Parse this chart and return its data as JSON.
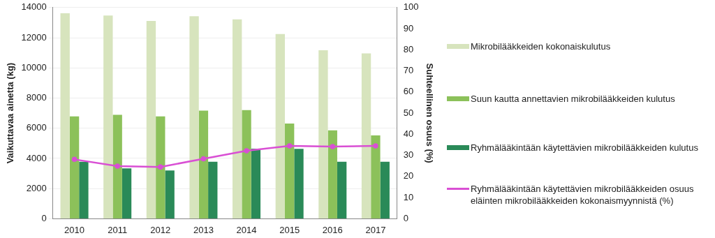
{
  "chart_data": {
    "type": "bar",
    "categories": [
      "2010",
      "2011",
      "2012",
      "2013",
      "2014",
      "2015",
      "2016",
      "2017"
    ],
    "ylabel": "Vaikuttavaa ainetta (kg)",
    "y2label": "Suhteellinen osuus (%)",
    "ylim": [
      0,
      14000
    ],
    "yticks": [
      0,
      2000,
      4000,
      6000,
      8000,
      10000,
      12000,
      14000
    ],
    "y2lim": [
      0,
      100
    ],
    "y2ticks": [
      0,
      10,
      20,
      30,
      40,
      50,
      60,
      70,
      80,
      90,
      100
    ],
    "grid": "y",
    "legend": "right",
    "marker": "circle",
    "series": [
      {
        "name": "Mikrobilääkkeiden kokonaiskulutus",
        "color": "#d7e4bd",
        "values": [
          13620,
          13470,
          13110,
          13420,
          13220,
          12250,
          11170,
          10960
        ]
      },
      {
        "name": "Suun kautta annettavien mikrobilääkkeiden kulutus",
        "color": "#8cc15a",
        "values": [
          6790,
          6890,
          6790,
          7170,
          7200,
          6310,
          5860,
          5520
        ]
      },
      {
        "name": "Ryhmälääkintään käytettävien mikrobilääkkeiden kulutus",
        "color": "#2a8a58",
        "values": [
          3780,
          3340,
          3200,
          3780,
          4650,
          4630,
          3780,
          3780
        ]
      },
      {
        "name": "Ryhmälääkintään käytettävien mikrobilääkkeiden osuus eläinten mikrobilääkkeiden kokonaismyynnistä (%)",
        "type": "line",
        "axis": "y2",
        "color": "#d94fd4",
        "values": [
          28.1,
          24.9,
          24.5,
          28.4,
          32.2,
          34.5,
          34.2,
          34.5
        ]
      }
    ]
  }
}
